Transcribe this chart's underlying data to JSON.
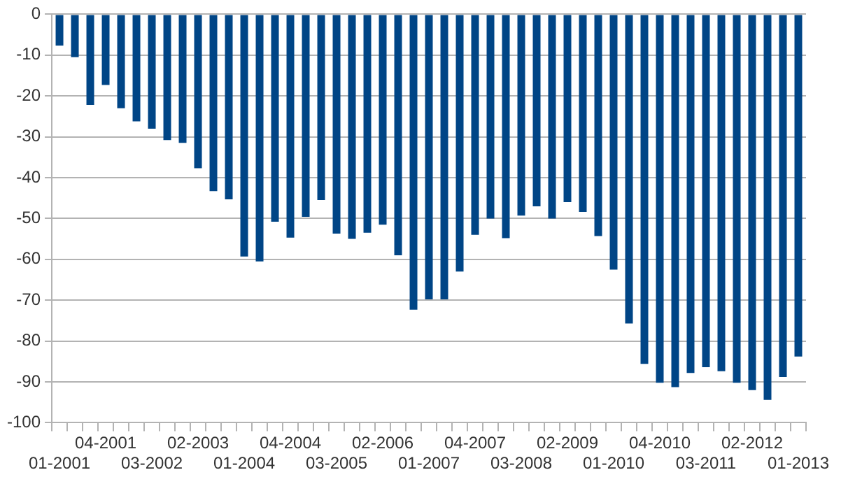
{
  "chart_data": {
    "type": "bar",
    "categories": [
      "01-2001",
      null,
      null,
      "04-2001",
      null,
      null,
      "03-2002",
      null,
      null,
      "02-2003",
      null,
      null,
      "01-2004",
      null,
      null,
      "04-2004",
      null,
      null,
      "03-2005",
      null,
      null,
      "02-2006",
      null,
      null,
      "01-2007",
      null,
      null,
      "04-2007",
      null,
      null,
      "03-2008",
      null,
      null,
      "02-2009",
      null,
      null,
      "01-2010",
      null,
      null,
      "04-2010",
      null,
      null,
      "03-2011",
      null,
      null,
      "02-2012",
      null,
      null,
      "01-2013"
    ],
    "series": [
      {
        "color": "#004586",
        "values": [
          -7.7,
          -10.5,
          -22.2,
          -17.3,
          -23,
          -26.2,
          -28,
          -30.8,
          -31.5,
          -37.7,
          -43.3,
          -45.3,
          -59.3,
          -60.5,
          -50.8,
          -54.7,
          -49.6,
          -45.5,
          -53.7,
          -55,
          -53.5,
          -51.5,
          -59,
          -72.3,
          -69.8,
          -69.8,
          -63,
          -54,
          -50,
          -54.8,
          -49.3,
          -47,
          -50,
          -46,
          -48.4,
          -54.3,
          -62.5,
          -75.7,
          -85.6,
          -90.2,
          -91.3,
          -87.8,
          -86.4,
          -87.4,
          -90.2,
          -92,
          -94.4,
          -88.8,
          -83.8
        ]
      }
    ],
    "ylim": [
      -100,
      0
    ],
    "yticks": [
      -100,
      -90,
      -80,
      -70,
      -60,
      -50,
      -40,
      -30,
      -20,
      -10,
      0
    ],
    "grid": "y",
    "legend": false
  }
}
